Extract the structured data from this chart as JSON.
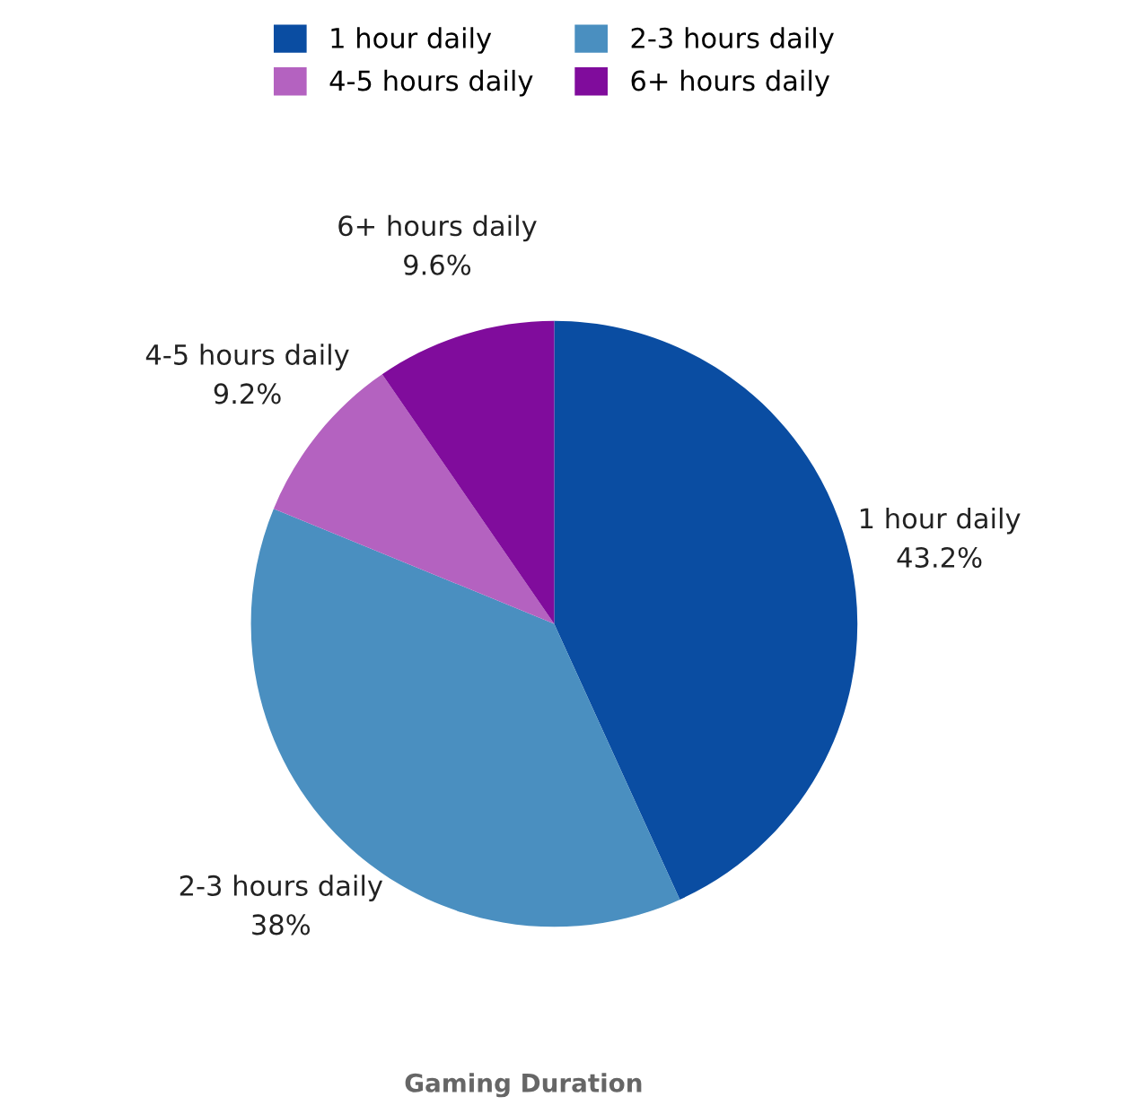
{
  "chart_data": {
    "type": "pie",
    "title": "Gaming Duration",
    "categories": [
      "1 hour daily",
      "2-3 hours daily",
      "4-5 hours daily",
      "6+ hours daily"
    ],
    "values": [
      43.2,
      38,
      9.2,
      9.6
    ],
    "colors": [
      "#0a4da2",
      "#4a8fc0",
      "#b462c0",
      "#800c9c"
    ],
    "value_labels": [
      "43.2%",
      "38%",
      "9.2%",
      "9.6%"
    ],
    "legend": "top"
  }
}
